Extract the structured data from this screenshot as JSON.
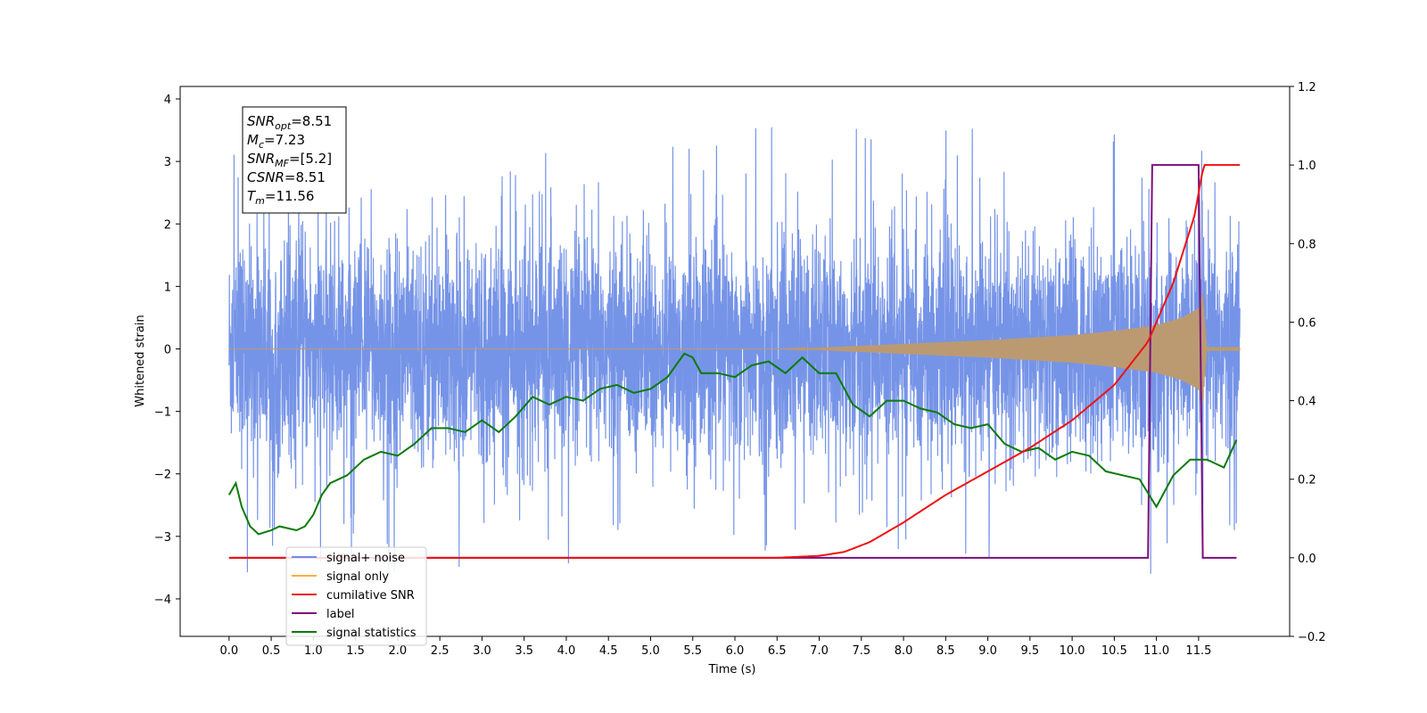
{
  "chart_data": {
    "type": "line",
    "title": "",
    "xlabel": "Time (s)",
    "ylabel_left": "Whitened strain",
    "ylabel_right": "",
    "xlim": [
      -0.58,
      12.58
    ],
    "ylim_left": [
      -4.6,
      4.2
    ],
    "ylim_right": [
      -0.2,
      1.2
    ],
    "x_ticks": [
      "0.0",
      "0.5",
      "1.0",
      "1.5",
      "2.0",
      "2.5",
      "3.0",
      "3.5",
      "4.0",
      "4.5",
      "5.0",
      "5.5",
      "6.0",
      "6.5",
      "7.0",
      "7.5",
      "8.0",
      "8.5",
      "9.0",
      "9.5",
      "10.0",
      "10.5",
      "11.0",
      "11.5"
    ],
    "y_ticks_left": [
      "4",
      "3",
      "2",
      "1",
      "0",
      "−1",
      "−2",
      "−3",
      "−4"
    ],
    "y_ticks_right": [
      "1.2",
      "1.0",
      "0.8",
      "0.6",
      "0.4",
      "0.2",
      "0.0",
      "−0.2"
    ],
    "grid": false,
    "legend_position": "lower-left",
    "colors": {
      "signal_noise": "#6f8ee6",
      "signal_only": "#f5b040",
      "signal_only_overlap": "#bb9a72",
      "cumulative_snr": "#ee1111",
      "label": "#7a0f7a",
      "signal_statistics": "#0a7a0a"
    },
    "annotation": {
      "lines": [
        {
          "sym": "SNR",
          "sub": "opt",
          "val": "=8.51"
        },
        {
          "sym": "M",
          "sub": "c",
          "val": "=7.23"
        },
        {
          "sym": "SNR",
          "sub": "MF",
          "val": "=[5.2]"
        },
        {
          "sym": "CSNR",
          "sub": "",
          "val": "=8.51"
        },
        {
          "sym": "T",
          "sub": "m",
          "val": "=11.56"
        }
      ]
    },
    "legend": [
      {
        "label": "signal+ noise",
        "color_key": "signal_noise"
      },
      {
        "label": "signal only",
        "color_key": "signal_only"
      },
      {
        "label": "cumilative SNR",
        "color_key": "cumulative_snr"
      },
      {
        "label": "label",
        "color_key": "label"
      },
      {
        "label": "signal statistics",
        "color_key": "signal_statistics"
      }
    ],
    "series": [
      {
        "name": "signal+ noise",
        "axis": "left",
        "x_range": [
          0.0,
          11.99
        ],
        "approx_envelope": [
          -3.6,
          3.8
        ]
      },
      {
        "name": "signal only",
        "axis": "left",
        "x": [
          0,
          6.5,
          7.0,
          7.5,
          8.0,
          8.5,
          9.0,
          9.5,
          10.0,
          10.5,
          11.0,
          11.3,
          11.5,
          11.55,
          11.6,
          11.99
        ],
        "amplitude": [
          0.0,
          0.0,
          0.02,
          0.05,
          0.08,
          0.11,
          0.14,
          0.18,
          0.22,
          0.29,
          0.38,
          0.5,
          0.65,
          0.9,
          0.03,
          0.03
        ]
      },
      {
        "name": "cumilative SNR",
        "axis": "right",
        "x": [
          0,
          6.0,
          6.5,
          7.0,
          7.3,
          7.6,
          8.0,
          8.5,
          9.0,
          9.5,
          10.0,
          10.5,
          10.9,
          11.2,
          11.45,
          11.56,
          11.99
        ],
        "y": [
          0.0,
          0.0,
          0.0,
          0.005,
          0.015,
          0.04,
          0.09,
          0.16,
          0.22,
          0.28,
          0.35,
          0.44,
          0.55,
          0.7,
          0.87,
          1.0,
          1.0
        ]
      },
      {
        "name": "label",
        "axis": "right",
        "x": [
          0.0,
          10.9,
          10.95,
          11.5,
          11.55,
          11.95
        ],
        "y": [
          0,
          0,
          1,
          1,
          0,
          0
        ]
      },
      {
        "name": "signal statistics",
        "axis": "right",
        "x": [
          0.0,
          0.08,
          0.15,
          0.25,
          0.35,
          0.5,
          0.6,
          0.8,
          0.9,
          1.0,
          1.1,
          1.2,
          1.4,
          1.6,
          1.7,
          1.8,
          2.0,
          2.2,
          2.4,
          2.5,
          2.6,
          2.8,
          3.0,
          3.2,
          3.4,
          3.6,
          3.8,
          4.0,
          4.2,
          4.4,
          4.6,
          4.8,
          5.0,
          5.2,
          5.4,
          5.5,
          5.6,
          5.8,
          6.0,
          6.2,
          6.4,
          6.6,
          6.8,
          7.0,
          7.2,
          7.4,
          7.6,
          7.8,
          8.0,
          8.2,
          8.4,
          8.6,
          8.8,
          9.0,
          9.2,
          9.4,
          9.6,
          9.8,
          10.0,
          10.2,
          10.4,
          10.6,
          10.8,
          11.0,
          11.2,
          11.4,
          11.6,
          11.8,
          11.95
        ],
        "y": [
          0.16,
          0.19,
          0.13,
          0.08,
          0.06,
          0.07,
          0.08,
          0.07,
          0.08,
          0.11,
          0.16,
          0.19,
          0.21,
          0.25,
          0.26,
          0.27,
          0.26,
          0.29,
          0.33,
          0.33,
          0.33,
          0.32,
          0.35,
          0.32,
          0.36,
          0.41,
          0.39,
          0.41,
          0.4,
          0.43,
          0.44,
          0.42,
          0.43,
          0.46,
          0.52,
          0.51,
          0.47,
          0.47,
          0.46,
          0.49,
          0.5,
          0.47,
          0.51,
          0.47,
          0.47,
          0.39,
          0.36,
          0.4,
          0.4,
          0.38,
          0.37,
          0.34,
          0.33,
          0.34,
          0.29,
          0.27,
          0.28,
          0.25,
          0.27,
          0.26,
          0.22,
          0.21,
          0.2,
          0.13,
          0.21,
          0.25,
          0.25,
          0.23,
          0.3
        ]
      }
    ]
  }
}
